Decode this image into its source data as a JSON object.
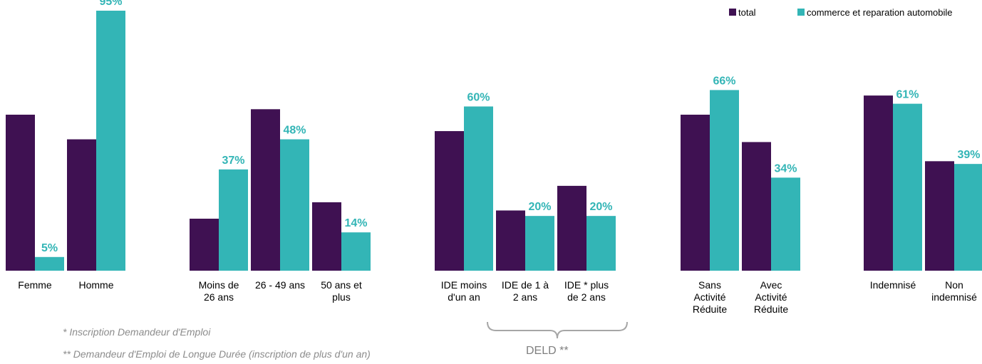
{
  "chart_data": {
    "type": "bar",
    "series": [
      {
        "name": "total",
        "color": "#3f1152",
        "values": [
          0.57,
          0.48,
          0.19,
          0.59,
          0.25,
          0.51,
          0.22,
          0.31,
          0.57,
          0.47,
          0.64,
          0.4
        ]
      },
      {
        "name": "commerce et reparation automobile",
        "color": "#33b5b6",
        "values": [
          0.05,
          0.95,
          0.37,
          0.48,
          0.14,
          0.6,
          0.2,
          0.2,
          0.66,
          0.34,
          0.61,
          0.39
        ]
      }
    ],
    "groups": [
      {
        "categories": [
          {
            "label_lines": [
              "Femme"
            ],
            "data_label": "5%"
          },
          {
            "label_lines": [
              "Homme"
            ],
            "data_label": "95%"
          }
        ]
      },
      {
        "categories": [
          {
            "label_lines": [
              "Moins de",
              "26 ans"
            ],
            "data_label": "37%"
          },
          {
            "label_lines": [
              "26 - 49 ans"
            ],
            "data_label": "48%"
          },
          {
            "label_lines": [
              "50 ans et",
              "plus"
            ],
            "data_label": "14%"
          }
        ]
      },
      {
        "categories": [
          {
            "label_lines": [
              "IDE moins",
              "d'un an"
            ],
            "data_label": "60%"
          },
          {
            "label_lines": [
              "IDE de 1 à",
              "2 ans"
            ],
            "data_label": "20%"
          },
          {
            "label_lines": [
              "IDE * plus",
              "de 2 ans"
            ],
            "data_label": "20%"
          }
        ]
      },
      {
        "categories": [
          {
            "label_lines": [
              "Sans",
              "Activité",
              "Réduite"
            ],
            "data_label": "66%"
          },
          {
            "label_lines": [
              "Avec",
              "Activité",
              "Réduite"
            ],
            "data_label": "34%"
          }
        ]
      },
      {
        "categories": [
          {
            "label_lines": [
              "Indemnisé"
            ],
            "data_label": "61%"
          },
          {
            "label_lines": [
              "Non",
              "indemnisé"
            ],
            "data_label": "39%"
          }
        ]
      }
    ],
    "ylim": [
      0,
      0.95
    ],
    "legend_position": "top-right",
    "grid": false,
    "bracket_label": "DELD **"
  },
  "footnotes": [
    "* Inscription Demandeur d'Emploi",
    "** Demandeur d'Emploi de Longue Durée (inscription de plus d'un an)"
  ]
}
